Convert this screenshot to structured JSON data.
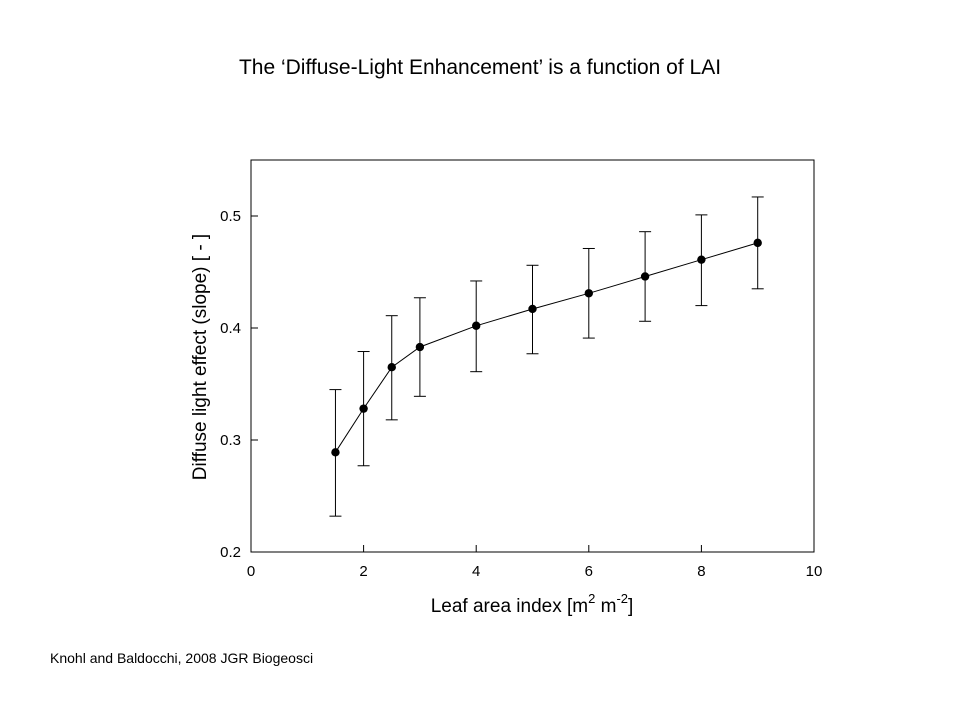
{
  "slide": {
    "title": "The ‘Diffuse-Light Enhancement’ is a function of LAI",
    "citation": "Knohl and Baldocchi, 2008 JGR Biogeosci"
  },
  "chart_data": {
    "type": "line",
    "title": "",
    "xlabel": "Leaf area index [m2 m-2]",
    "ylabel": "Diffuse light effect (slope) [ - ]",
    "xlim": [
      0,
      10
    ],
    "ylim": [
      0.2,
      0.55
    ],
    "xticks": [
      0,
      2,
      4,
      6,
      8,
      10
    ],
    "xtick_labels": [
      "0",
      "2",
      "4",
      "6",
      "8",
      "10"
    ],
    "yticks": [
      0.2,
      0.3,
      0.4,
      0.5
    ],
    "ytick_labels": [
      "0.2",
      "0.3",
      "0.4",
      "0.5"
    ],
    "grid": false,
    "series": [
      {
        "x": [
          1.5,
          2,
          2.5,
          3,
          4,
          5,
          6,
          7,
          8,
          9
        ],
        "y": [
          0.289,
          0.328,
          0.365,
          0.383,
          0.402,
          0.417,
          0.431,
          0.446,
          0.461,
          0.476
        ],
        "err_upper": [
          0.345,
          0.379,
          0.411,
          0.427,
          0.442,
          0.456,
          0.471,
          0.486,
          0.501,
          0.517
        ],
        "err_lower": [
          0.232,
          0.277,
          0.318,
          0.339,
          0.361,
          0.377,
          0.391,
          0.406,
          0.42,
          0.435
        ]
      }
    ]
  }
}
